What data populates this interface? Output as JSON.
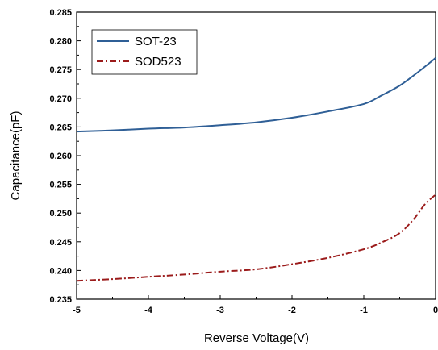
{
  "chart_data": {
    "type": "line",
    "xlabel": "Reverse Voltage(V)",
    "ylabel": "Capacitance(pF)",
    "xlim": [
      -5,
      0
    ],
    "ylim": [
      0.235,
      0.285
    ],
    "xticks": [
      "-5",
      "-4",
      "-3",
      "-2",
      "-1",
      "0"
    ],
    "yticks": [
      "0.235",
      "0.240",
      "0.245",
      "0.250",
      "0.255",
      "0.260",
      "0.265",
      "0.270",
      "0.275",
      "0.280",
      "0.285"
    ],
    "legend_position": "top-left",
    "grid": false,
    "series": [
      {
        "name": "SOT-23",
        "color": "#2F5F96",
        "style": "solid",
        "x": [
          -5,
          -4.5,
          -4,
          -3.5,
          -3,
          -2.5,
          -2,
          -1.5,
          -1,
          -0.75,
          -0.5,
          -0.25,
          0
        ],
        "y": [
          0.2642,
          0.2644,
          0.2647,
          0.2649,
          0.2653,
          0.2658,
          0.2666,
          0.2677,
          0.269,
          0.2705,
          0.2722,
          0.2745,
          0.277
        ]
      },
      {
        "name": "SOD523",
        "color": "#9B1B1B",
        "style": "dashdot",
        "x": [
          -5,
          -4.5,
          -4,
          -3.5,
          -3,
          -2.5,
          -2,
          -1.5,
          -1,
          -0.75,
          -0.5,
          -0.3,
          -0.15,
          0
        ],
        "y": [
          0.2382,
          0.2385,
          0.2389,
          0.2393,
          0.2398,
          0.2402,
          0.2411,
          0.2422,
          0.2437,
          0.2449,
          0.2465,
          0.249,
          0.2515,
          0.2532
        ]
      }
    ]
  }
}
